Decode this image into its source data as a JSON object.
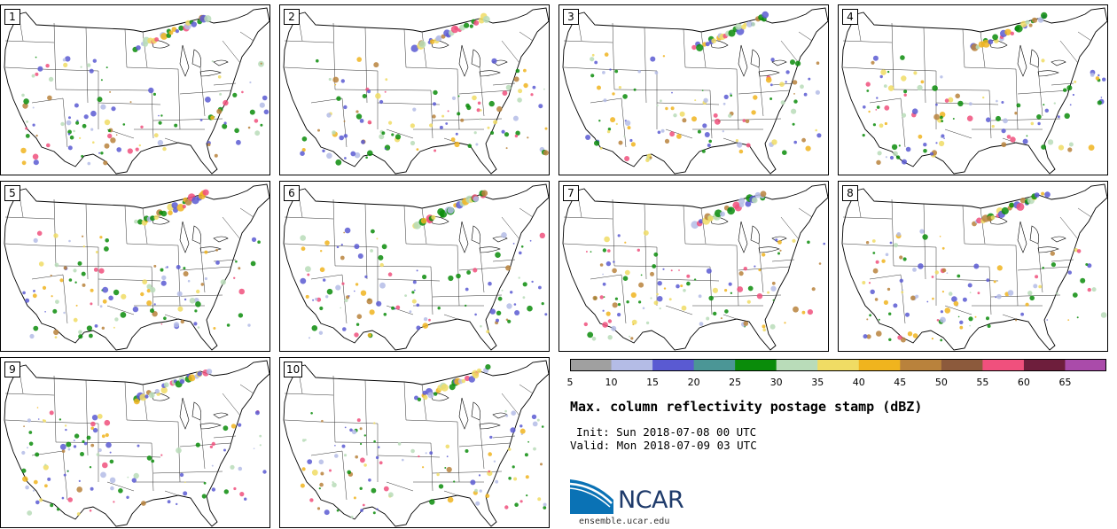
{
  "panels": [
    {
      "label": "1"
    },
    {
      "label": "2"
    },
    {
      "label": "3"
    },
    {
      "label": "4"
    },
    {
      "label": "5"
    },
    {
      "label": "6"
    },
    {
      "label": "7"
    },
    {
      "label": "8"
    },
    {
      "label": "9"
    },
    {
      "label": "10"
    }
  ],
  "legend": {
    "colors": [
      "#a0a0a0",
      "#b4bce6",
      "#5a5ad2",
      "#4b9696",
      "#0a8c0a",
      "#b9dcb9",
      "#f0dc64",
      "#f0b41e",
      "#b9823c",
      "#8c5a3c",
      "#f0507d",
      "#6e1e3c",
      "#aa4baa"
    ],
    "ticks": [
      "5",
      "10",
      "15",
      "20",
      "25",
      "30",
      "35",
      "40",
      "45",
      "50",
      "55",
      "60",
      "65"
    ]
  },
  "title": "Max. column reflectivity postage stamp (dBZ)",
  "init": "Init: Sun 2018-07-08 00 UTC",
  "valid": "Valid: Mon 2018-07-09 03 UTC",
  "logo": {
    "text": "NCAR",
    "url": "ensemble.ucar.edu"
  }
}
